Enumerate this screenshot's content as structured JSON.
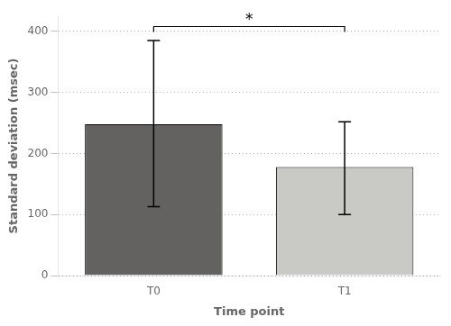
{
  "chart_data": {
    "type": "bar",
    "categories": [
      "T0",
      "T1"
    ],
    "values": [
      248,
      178
    ],
    "colors": [
      "#636261",
      "#c9c9c5"
    ],
    "error_lower": [
      113,
      100
    ],
    "error_upper": [
      385,
      252
    ],
    "xlabel": "Time point",
    "ylabel": "Standard deviation (msec)",
    "ylim": [
      0,
      425
    ],
    "yticks": [
      0,
      100,
      200,
      300,
      400
    ],
    "grid": true,
    "annotations": [
      {
        "text": "*",
        "y": 408,
        "x": [
          "T0",
          "T1"
        ]
      }
    ]
  }
}
